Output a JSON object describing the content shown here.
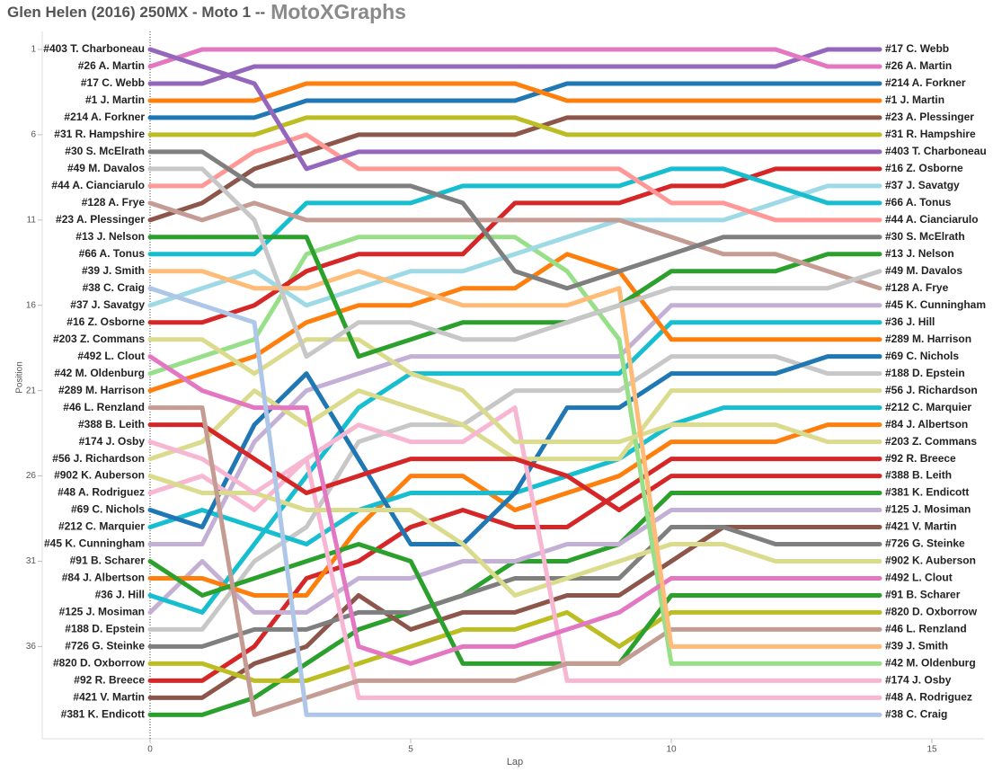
{
  "chart_data": {
    "type": "bump",
    "title": "Glen Helen (2016) 250MX - Moto 1 --",
    "subtitle": "MotoXGraphs",
    "x_label": "Lap",
    "y_label": "Position",
    "x": [
      0,
      1,
      2,
      3,
      4,
      5,
      6,
      7,
      8,
      9,
      10,
      11,
      12,
      13,
      14
    ],
    "xlim": [
      -2.07,
      16
    ],
    "xticks": [
      0,
      5,
      10,
      15
    ],
    "ylim": [
      41.3,
      0.5
    ],
    "yticks": [
      1,
      6,
      11,
      16,
      21,
      26,
      31,
      36
    ],
    "series": [
      {
        "name": "#403 T. Charboneau",
        "color": "#9467bd",
        "values": [
          1,
          2,
          3,
          8,
          7,
          7,
          7,
          7,
          7,
          7,
          7,
          7,
          7,
          7,
          7
        ]
      },
      {
        "name": "#26 A. Martin",
        "color": "#e377c2",
        "values": [
          2,
          1,
          1,
          1,
          1,
          1,
          1,
          1,
          1,
          1,
          1,
          1,
          1,
          2,
          2
        ]
      },
      {
        "name": "#17 C. Webb",
        "color": "#9467bd",
        "values": [
          3,
          3,
          2,
          2,
          2,
          2,
          2,
          2,
          2,
          2,
          2,
          2,
          2,
          1,
          1
        ]
      },
      {
        "name": "#1 J. Martin",
        "color": "#ff7f0e",
        "values": [
          4,
          4,
          4,
          3,
          3,
          3,
          3,
          3,
          4,
          4,
          4,
          4,
          4,
          4,
          4
        ]
      },
      {
        "name": "#214 A. Forkner",
        "color": "#1f77b4",
        "values": [
          5,
          5,
          5,
          4,
          4,
          4,
          4,
          4,
          3,
          3,
          3,
          3,
          3,
          3,
          3
        ]
      },
      {
        "name": "#31 R. Hampshire",
        "color": "#bcbd22",
        "values": [
          6,
          6,
          6,
          5,
          5,
          5,
          5,
          5,
          6,
          6,
          6,
          6,
          6,
          6,
          6
        ]
      },
      {
        "name": "#30 S. McElrath",
        "color": "#7f7f7f",
        "values": [
          7,
          7,
          9,
          9,
          9,
          9,
          10,
          14,
          15,
          14,
          13,
          12,
          12,
          12,
          12
        ]
      },
      {
        "name": "#49 M. Davalos",
        "color": "#c7c7c7",
        "values": [
          8,
          8,
          11,
          19,
          17,
          17,
          18,
          18,
          17,
          16,
          15,
          15,
          15,
          15,
          14
        ]
      },
      {
        "name": "#44 A. Cianciarulo",
        "color": "#ff9896",
        "values": [
          9,
          9,
          7,
          6,
          8,
          8,
          8,
          8,
          8,
          8,
          10,
          10,
          11,
          11,
          11
        ]
      },
      {
        "name": "#128 A. Frye",
        "color": "#c49c94",
        "values": [
          10,
          11,
          10,
          11,
          11,
          11,
          11,
          11,
          11,
          11,
          12,
          13,
          13,
          14,
          15
        ]
      },
      {
        "name": "#23 A. Plessinger",
        "color": "#8c564b",
        "values": [
          11,
          10,
          8,
          7,
          6,
          6,
          6,
          6,
          5,
          5,
          5,
          5,
          5,
          5,
          5
        ]
      },
      {
        "name": "#13 J. Nelson",
        "color": "#2ca02c",
        "values": [
          12,
          12,
          12,
          12,
          19,
          18,
          17,
          17,
          17,
          16,
          14,
          14,
          14,
          13,
          13
        ]
      },
      {
        "name": "#66 A. Tonus",
        "color": "#17becf",
        "values": [
          13,
          13,
          13,
          10,
          10,
          10,
          9,
          9,
          9,
          9,
          8,
          8,
          9,
          10,
          10
        ]
      },
      {
        "name": "#39 J. Smith",
        "color": "#ffbb78",
        "values": [
          14,
          14,
          15,
          15,
          14,
          15,
          16,
          16,
          16,
          15,
          36,
          36,
          36,
          36,
          36
        ]
      },
      {
        "name": "#38 C. Craig",
        "color": "#aec7e8",
        "values": [
          15,
          16,
          17,
          40,
          40,
          40,
          40,
          40,
          40,
          40,
          40,
          40,
          40,
          40,
          40
        ]
      },
      {
        "name": "#37 J. Savatgy",
        "color": "#9edae5",
        "values": [
          16,
          15,
          14,
          16,
          15,
          14,
          14,
          13,
          12,
          11,
          11,
          11,
          10,
          9,
          9
        ]
      },
      {
        "name": "#16 Z. Osborne",
        "color": "#d62728",
        "values": [
          17,
          17,
          16,
          14,
          13,
          13,
          13,
          10,
          10,
          10,
          9,
          9,
          8,
          8,
          8
        ]
      },
      {
        "name": "#203 Z. Commans",
        "color": "#dbdb8d",
        "values": [
          18,
          18,
          20,
          18,
          18,
          20,
          21,
          24,
          24,
          24,
          23,
          23,
          23,
          24,
          24
        ]
      },
      {
        "name": "#492 L. Clout",
        "color": "#e377c2",
        "values": [
          19,
          21,
          22,
          22,
          36,
          37,
          36,
          36,
          35,
          34,
          32,
          32,
          32,
          32,
          32
        ]
      },
      {
        "name": "#42 M. Oldenburg",
        "color": "#98df8a",
        "values": [
          20,
          19,
          18,
          13,
          12,
          12,
          12,
          12,
          14,
          18,
          37,
          37,
          37,
          37,
          37
        ]
      },
      {
        "name": "#289 M. Harrison",
        "color": "#ff7f0e",
        "values": [
          21,
          20,
          19,
          17,
          16,
          16,
          15,
          15,
          13,
          14,
          18,
          18,
          18,
          18,
          18
        ]
      },
      {
        "name": "#46 L. Renzland",
        "color": "#c49c94",
        "values": [
          22,
          22,
          40,
          39,
          38,
          38,
          38,
          38,
          37,
          37,
          35,
          35,
          35,
          35,
          35
        ]
      },
      {
        "name": "#388 B. Leith",
        "color": "#d62728",
        "values": [
          23,
          23,
          25,
          27,
          26,
          25,
          25,
          25,
          26,
          28,
          26,
          26,
          26,
          26,
          26
        ]
      },
      {
        "name": "#174 J. Osby",
        "color": "#f7b6d2",
        "values": [
          24,
          25,
          27,
          25,
          23,
          24,
          24,
          22,
          38,
          38,
          38,
          38,
          38,
          38,
          38
        ]
      },
      {
        "name": "#56 J. Richardson",
        "color": "#dbdb8d",
        "values": [
          25,
          24,
          21,
          23,
          21,
          22,
          23,
          25,
          25,
          25,
          21,
          21,
          21,
          21,
          21
        ]
      },
      {
        "name": "#902 K. Auberson",
        "color": "#dbdb8d",
        "values": [
          26,
          27,
          27,
          28,
          28,
          28,
          30,
          33,
          32,
          31,
          30,
          30,
          31,
          31,
          31
        ]
      },
      {
        "name": "#48 A. Rodriguez",
        "color": "#f7b6d2",
        "values": [
          27,
          26,
          28,
          25,
          39,
          39,
          39,
          39,
          39,
          39,
          39,
          39,
          39,
          39,
          39
        ]
      },
      {
        "name": "#69 C. Nichols",
        "color": "#1f77b4",
        "values": [
          28,
          29,
          23,
          20,
          25,
          30,
          30,
          27,
          22,
          22,
          20,
          20,
          20,
          19,
          19
        ]
      },
      {
        "name": "#212 C. Marquier",
        "color": "#17becf",
        "values": [
          29,
          28,
          29,
          30,
          28,
          27,
          27,
          27,
          26,
          25,
          23,
          22,
          22,
          22,
          22
        ]
      },
      {
        "name": "#45 K. Cunningham",
        "color": "#c5b0d5",
        "values": [
          30,
          30,
          24,
          21,
          20,
          19,
          19,
          19,
          19,
          19,
          16,
          16,
          16,
          16,
          16
        ]
      },
      {
        "name": "#91 B. Scharer",
        "color": "#2ca02c",
        "values": [
          31,
          33,
          32,
          31,
          30,
          31,
          37,
          37,
          37,
          37,
          33,
          33,
          33,
          33,
          33
        ]
      },
      {
        "name": "#84 J. Albertson",
        "color": "#ff7f0e",
        "values": [
          32,
          32,
          33,
          33,
          29,
          26,
          26,
          28,
          27,
          26,
          24,
          24,
          24,
          23,
          23
        ]
      },
      {
        "name": "#36 J. Hill",
        "color": "#17becf",
        "values": [
          33,
          34,
          30,
          26,
          22,
          20,
          20,
          20,
          20,
          20,
          17,
          17,
          17,
          17,
          17
        ]
      },
      {
        "name": "#125 J. Mosiman",
        "color": "#c5b0d5",
        "values": [
          34,
          31,
          34,
          34,
          32,
          32,
          31,
          31,
          30,
          30,
          28,
          28,
          28,
          28,
          28
        ]
      },
      {
        "name": "#188 D. Epstein",
        "color": "#c7c7c7",
        "values": [
          35,
          35,
          31,
          29,
          24,
          23,
          23,
          21,
          21,
          21,
          19,
          19,
          19,
          20,
          20
        ]
      },
      {
        "name": "#726 G. Steinke",
        "color": "#7f7f7f",
        "values": [
          36,
          36,
          35,
          35,
          34,
          34,
          33,
          32,
          32,
          32,
          29,
          29,
          30,
          30,
          30
        ]
      },
      {
        "name": "#820 D. Oxborrow",
        "color": "#bcbd22",
        "values": [
          37,
          37,
          38,
          38,
          37,
          36,
          35,
          35,
          34,
          36,
          34,
          34,
          34,
          34,
          34
        ]
      },
      {
        "name": "#92 R. Breece",
        "color": "#d62728",
        "values": [
          38,
          38,
          36,
          32,
          31,
          29,
          28,
          29,
          29,
          27,
          25,
          25,
          25,
          25,
          25
        ]
      },
      {
        "name": "#421 V. Martin",
        "color": "#8c564b",
        "values": [
          39,
          39,
          37,
          36,
          33,
          35,
          34,
          34,
          33,
          33,
          31,
          29,
          29,
          29,
          29
        ]
      },
      {
        "name": "#381 K. Endicott",
        "color": "#2ca02c",
        "values": [
          40,
          40,
          39,
          37,
          35,
          34,
          33,
          31,
          31,
          30,
          27,
          27,
          27,
          27,
          27
        ]
      }
    ]
  }
}
